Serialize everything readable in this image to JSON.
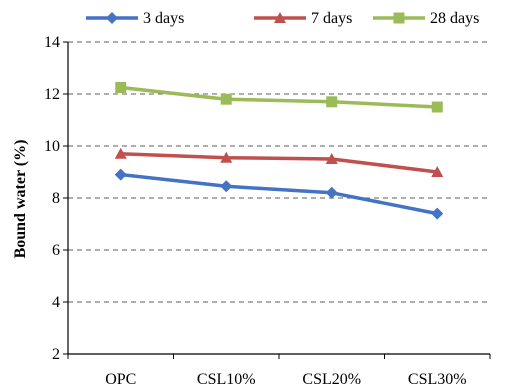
{
  "chart_data": {
    "type": "line",
    "categories": [
      "OPC",
      "CSL10%",
      "CSL20%",
      "CSL30%"
    ],
    "series": [
      {
        "name": "3 days",
        "values": [
          8.9,
          8.45,
          8.2,
          7.4
        ],
        "color": "#4472C4",
        "marker": "diamond"
      },
      {
        "name": "7 days",
        "values": [
          9.7,
          9.55,
          9.5,
          9.0
        ],
        "color": "#C0504D",
        "marker": "triangle"
      },
      {
        "name": "28 days",
        "values": [
          12.25,
          11.8,
          11.7,
          11.5
        ],
        "color": "#9BBB59",
        "marker": "square"
      }
    ],
    "title": "",
    "xlabel": "",
    "ylabel": "Bound water (%)",
    "ylim": [
      2,
      14
    ],
    "yticks": [
      2,
      4,
      6,
      8,
      10,
      12,
      14
    ],
    "grid": "horizontal dashed",
    "legend": "top"
  }
}
